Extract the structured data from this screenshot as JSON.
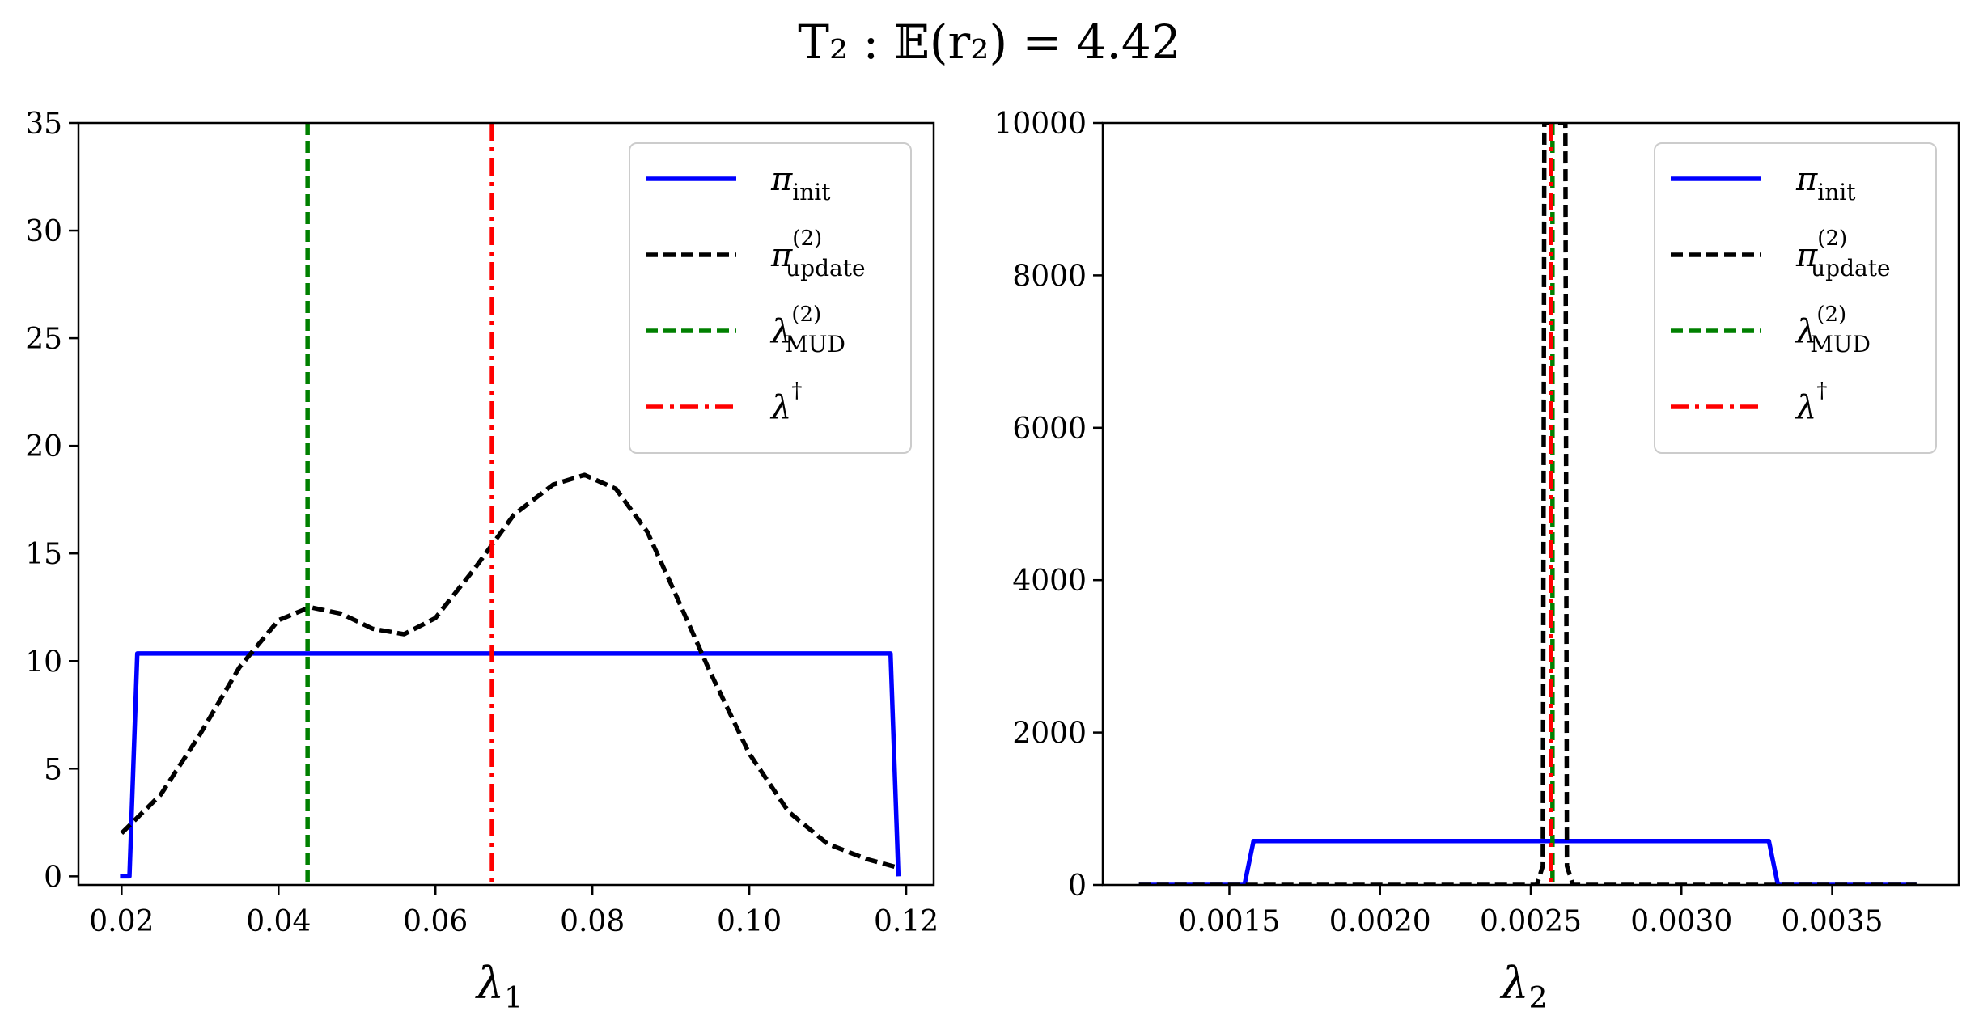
{
  "figure": {
    "title": "T₂ : 𝔼(r₂) = 4.42",
    "colors": {
      "init": "#0000ff",
      "update": "#000000",
      "mud": "#008000",
      "true": "#ff0000"
    }
  },
  "chart_data": [
    {
      "type": "line",
      "xlabel": "λ",
      "xlabel_sub": "1",
      "ylabel": "",
      "xlim": [
        0.0145,
        0.1235
      ],
      "ylim": [
        -0.4,
        35
      ],
      "xticks": [
        0.02,
        0.04,
        0.06,
        0.08,
        0.1,
        0.12
      ],
      "xtick_labels": [
        "0.02",
        "0.04",
        "0.06",
        "0.08",
        "0.10",
        "0.12"
      ],
      "yticks": [
        0,
        5,
        10,
        15,
        20,
        25,
        30,
        35
      ],
      "ytick_labels": [
        "0",
        "5",
        "10",
        "15",
        "20",
        "25",
        "30",
        "35"
      ],
      "legend_position": "top-right",
      "series": [
        {
          "name": "π_init",
          "style": "solid",
          "color": "#0000ff",
          "x": [
            0.0198,
            0.021,
            0.022,
            0.118,
            0.119
          ],
          "y": [
            0,
            0,
            10.35,
            10.35,
            0
          ]
        },
        {
          "name": "π_update^(2)",
          "style": "dashed",
          "color": "#000000",
          "x": [
            0.02,
            0.025,
            0.03,
            0.035,
            0.04,
            0.044,
            0.048,
            0.052,
            0.056,
            0.06,
            0.065,
            0.07,
            0.075,
            0.079,
            0.083,
            0.087,
            0.09,
            0.095,
            0.1,
            0.105,
            0.11,
            0.115,
            0.119
          ],
          "y": [
            2.0,
            3.8,
            6.6,
            9.7,
            11.9,
            12.5,
            12.2,
            11.5,
            11.25,
            12.0,
            14.3,
            16.8,
            18.2,
            18.65,
            18.0,
            16.0,
            13.6,
            9.5,
            5.7,
            3.0,
            1.5,
            0.8,
            0.4
          ]
        },
        {
          "name": "λ_MUD^(2)",
          "style": "dashed",
          "color": "#008000",
          "vline": 0.0437
        },
        {
          "name": "λ†",
          "style": "dashdot",
          "color": "#ff0000",
          "vline": 0.0672
        }
      ]
    },
    {
      "type": "line",
      "xlabel": "λ",
      "xlabel_sub": "2",
      "ylabel": "",
      "xlim": [
        0.00108,
        0.00392
      ],
      "ylim": [
        0,
        10000
      ],
      "xticks": [
        0.0015,
        0.002,
        0.0025,
        0.003,
        0.0035
      ],
      "xtick_labels": [
        "0.0015",
        "0.0020",
        "0.0025",
        "0.0030",
        "0.0035"
      ],
      "yticks": [
        0,
        2000,
        4000,
        6000,
        8000,
        10000
      ],
      "ytick_labels": [
        "0",
        "2000",
        "4000",
        "6000",
        "8000",
        "10000"
      ],
      "legend_position": "top-right",
      "series": [
        {
          "name": "π_init",
          "style": "solid",
          "color": "#0000ff",
          "x": [
            0.0012,
            0.00155,
            0.00158,
            0.00329,
            0.00332,
            0.00378
          ],
          "y": [
            0,
            0,
            575,
            575,
            0,
            0
          ]
        },
        {
          "name": "π_update^(2)",
          "style": "dashed",
          "color": "#000000",
          "x": [
            0.0012,
            0.00252,
            0.00254,
            0.002545,
            0.002615,
            0.00262,
            0.00264,
            0.00378
          ],
          "y": [
            0,
            0,
            250,
            10000,
            10000,
            250,
            0,
            0
          ]
        },
        {
          "name": "λ_MUD^(2)",
          "style": "dashed",
          "color": "#008000",
          "vline": 0.002572
        },
        {
          "name": "λ†",
          "style": "dashdot",
          "color": "#ff0000",
          "vline": 0.002567
        }
      ]
    }
  ],
  "legend": {
    "entries": [
      {
        "base": "π",
        "sub": "init",
        "sup": ""
      },
      {
        "base": "π",
        "sub": "update",
        "sup": "(2)"
      },
      {
        "base": "λ",
        "sub": "MUD",
        "sup": "(2)"
      },
      {
        "base": "λ",
        "sub": "",
        "sup": "†"
      }
    ]
  }
}
